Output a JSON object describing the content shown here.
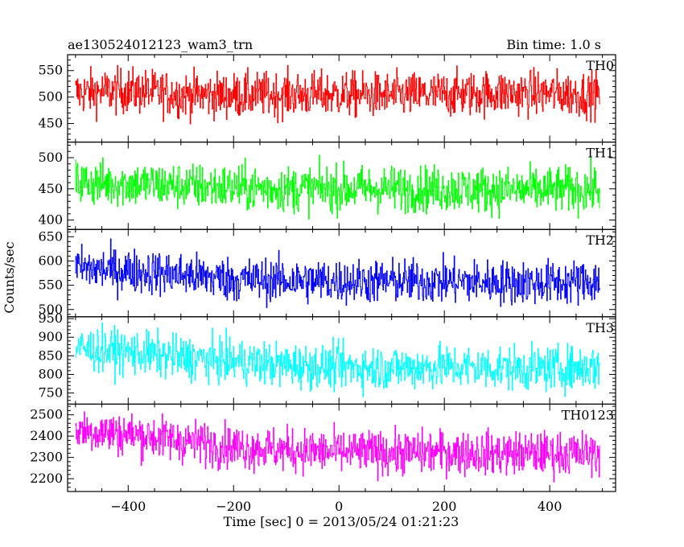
{
  "chart_data": {
    "type": "line",
    "title_left": "ae130524012123_wam3_trn",
    "title_right": "Bin time: 1.0 s",
    "xlabel": "Time [sec] 0 = 2013/05/24 01:21:23",
    "ylabel": "Counts/sec",
    "xlim": [
      -515,
      525
    ],
    "x_ticks": [
      -400,
      -200,
      0,
      200,
      400
    ],
    "x_range": [
      -500,
      495
    ],
    "bin": 1.0,
    "panels": [
      {
        "name": "TH0",
        "color": "#ff0000",
        "ylim": [
          415,
          580
        ],
        "y_ticks": [
          450,
          500,
          550
        ],
        "series": [
          {
            "x": -500,
            "y": 508
          },
          {
            "x": -400,
            "y": 512
          },
          {
            "x": -300,
            "y": 505
          },
          {
            "x": -200,
            "y": 503
          },
          {
            "x": -100,
            "y": 505
          },
          {
            "x": 0,
            "y": 505
          },
          {
            "x": 100,
            "y": 503
          },
          {
            "x": 200,
            "y": 505
          },
          {
            "x": 300,
            "y": 508
          },
          {
            "x": 400,
            "y": 507
          },
          {
            "x": 495,
            "y": 505
          }
        ],
        "noise": 30
      },
      {
        "name": "TH1",
        "color": "#00ff00",
        "ylim": [
          385,
          525
        ],
        "y_ticks": [
          400,
          450,
          500
        ],
        "series": [
          {
            "x": -500,
            "y": 460
          },
          {
            "x": -400,
            "y": 458
          },
          {
            "x": -300,
            "y": 455
          },
          {
            "x": -200,
            "y": 452
          },
          {
            "x": -100,
            "y": 450
          },
          {
            "x": 0,
            "y": 450
          },
          {
            "x": 100,
            "y": 450
          },
          {
            "x": 200,
            "y": 450
          },
          {
            "x": 300,
            "y": 448
          },
          {
            "x": 400,
            "y": 448
          },
          {
            "x": 495,
            "y": 450
          }
        ],
        "noise": 26
      },
      {
        "name": "TH2",
        "color": "#0000ff",
        "ylim": [
          485,
          665
        ],
        "y_ticks": [
          500,
          550,
          600,
          650
        ],
        "series": [
          {
            "x": -500,
            "y": 585
          },
          {
            "x": -400,
            "y": 580
          },
          {
            "x": -300,
            "y": 572
          },
          {
            "x": -200,
            "y": 562
          },
          {
            "x": -100,
            "y": 560
          },
          {
            "x": 0,
            "y": 558
          },
          {
            "x": 100,
            "y": 558
          },
          {
            "x": 200,
            "y": 558
          },
          {
            "x": 300,
            "y": 556
          },
          {
            "x": 400,
            "y": 555
          },
          {
            "x": 495,
            "y": 558
          }
        ],
        "noise": 32
      },
      {
        "name": "TH3",
        "color": "#00ffff",
        "ylim": [
          720,
          955
        ],
        "y_ticks": [
          750,
          800,
          850,
          900,
          950
        ],
        "series": [
          {
            "x": -500,
            "y": 870
          },
          {
            "x": -400,
            "y": 860
          },
          {
            "x": -300,
            "y": 845
          },
          {
            "x": -200,
            "y": 835
          },
          {
            "x": -100,
            "y": 825
          },
          {
            "x": 0,
            "y": 820
          },
          {
            "x": 100,
            "y": 818
          },
          {
            "x": 200,
            "y": 820
          },
          {
            "x": 300,
            "y": 818
          },
          {
            "x": 400,
            "y": 815
          },
          {
            "x": 495,
            "y": 820
          }
        ],
        "noise": 42
      },
      {
        "name": "TH0123",
        "color": "#ff00ff",
        "ylim": [
          2140,
          2550
        ],
        "y_ticks": [
          2200,
          2300,
          2400,
          2500
        ],
        "series": [
          {
            "x": -500,
            "y": 2430
          },
          {
            "x": -400,
            "y": 2410
          },
          {
            "x": -300,
            "y": 2380
          },
          {
            "x": -200,
            "y": 2350
          },
          {
            "x": -100,
            "y": 2335
          },
          {
            "x": 0,
            "y": 2325
          },
          {
            "x": 100,
            "y": 2322
          },
          {
            "x": 200,
            "y": 2325
          },
          {
            "x": 300,
            "y": 2320
          },
          {
            "x": 400,
            "y": 2318
          },
          {
            "x": 495,
            "y": 2320
          }
        ],
        "noise": 72
      }
    ]
  }
}
